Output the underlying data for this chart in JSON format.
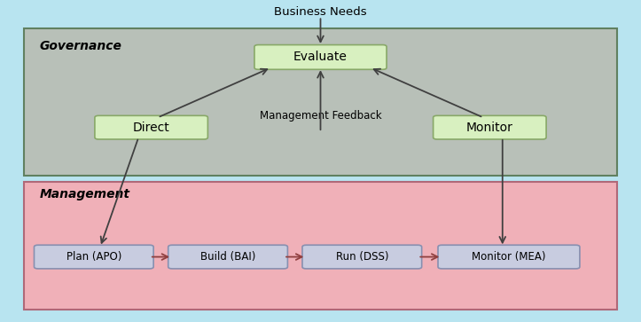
{
  "fig_width": 7.23,
  "fig_height": 3.63,
  "dpi": 100,
  "bg_color": "#b8e4f0",
  "governance_bg": "#b8c0b8",
  "management_bg": "#f0b0b8",
  "box_green_face": "#d8f0c0",
  "box_green_edge": "#88a868",
  "box_blue_face": "#c8cce0",
  "box_blue_edge": "#8890b0",
  "governance_label": "Governance",
  "management_label": "Management",
  "business_needs_label": "Business Needs",
  "management_feedback_label": "Management Feedback",
  "evaluate_label": "Evaluate",
  "direct_label": "Direct",
  "monitor_gov_label": "Monitor",
  "plan_label": "Plan (APO)",
  "build_label": "Build (BAI)",
  "run_label": "Run (DSS)",
  "monitor_mgmt_label": "Monitor (MEA)",
  "arrow_dark": "#404040",
  "arrow_red": "#904040",
  "gov_edge": "#608060",
  "mgmt_edge": "#b06878"
}
